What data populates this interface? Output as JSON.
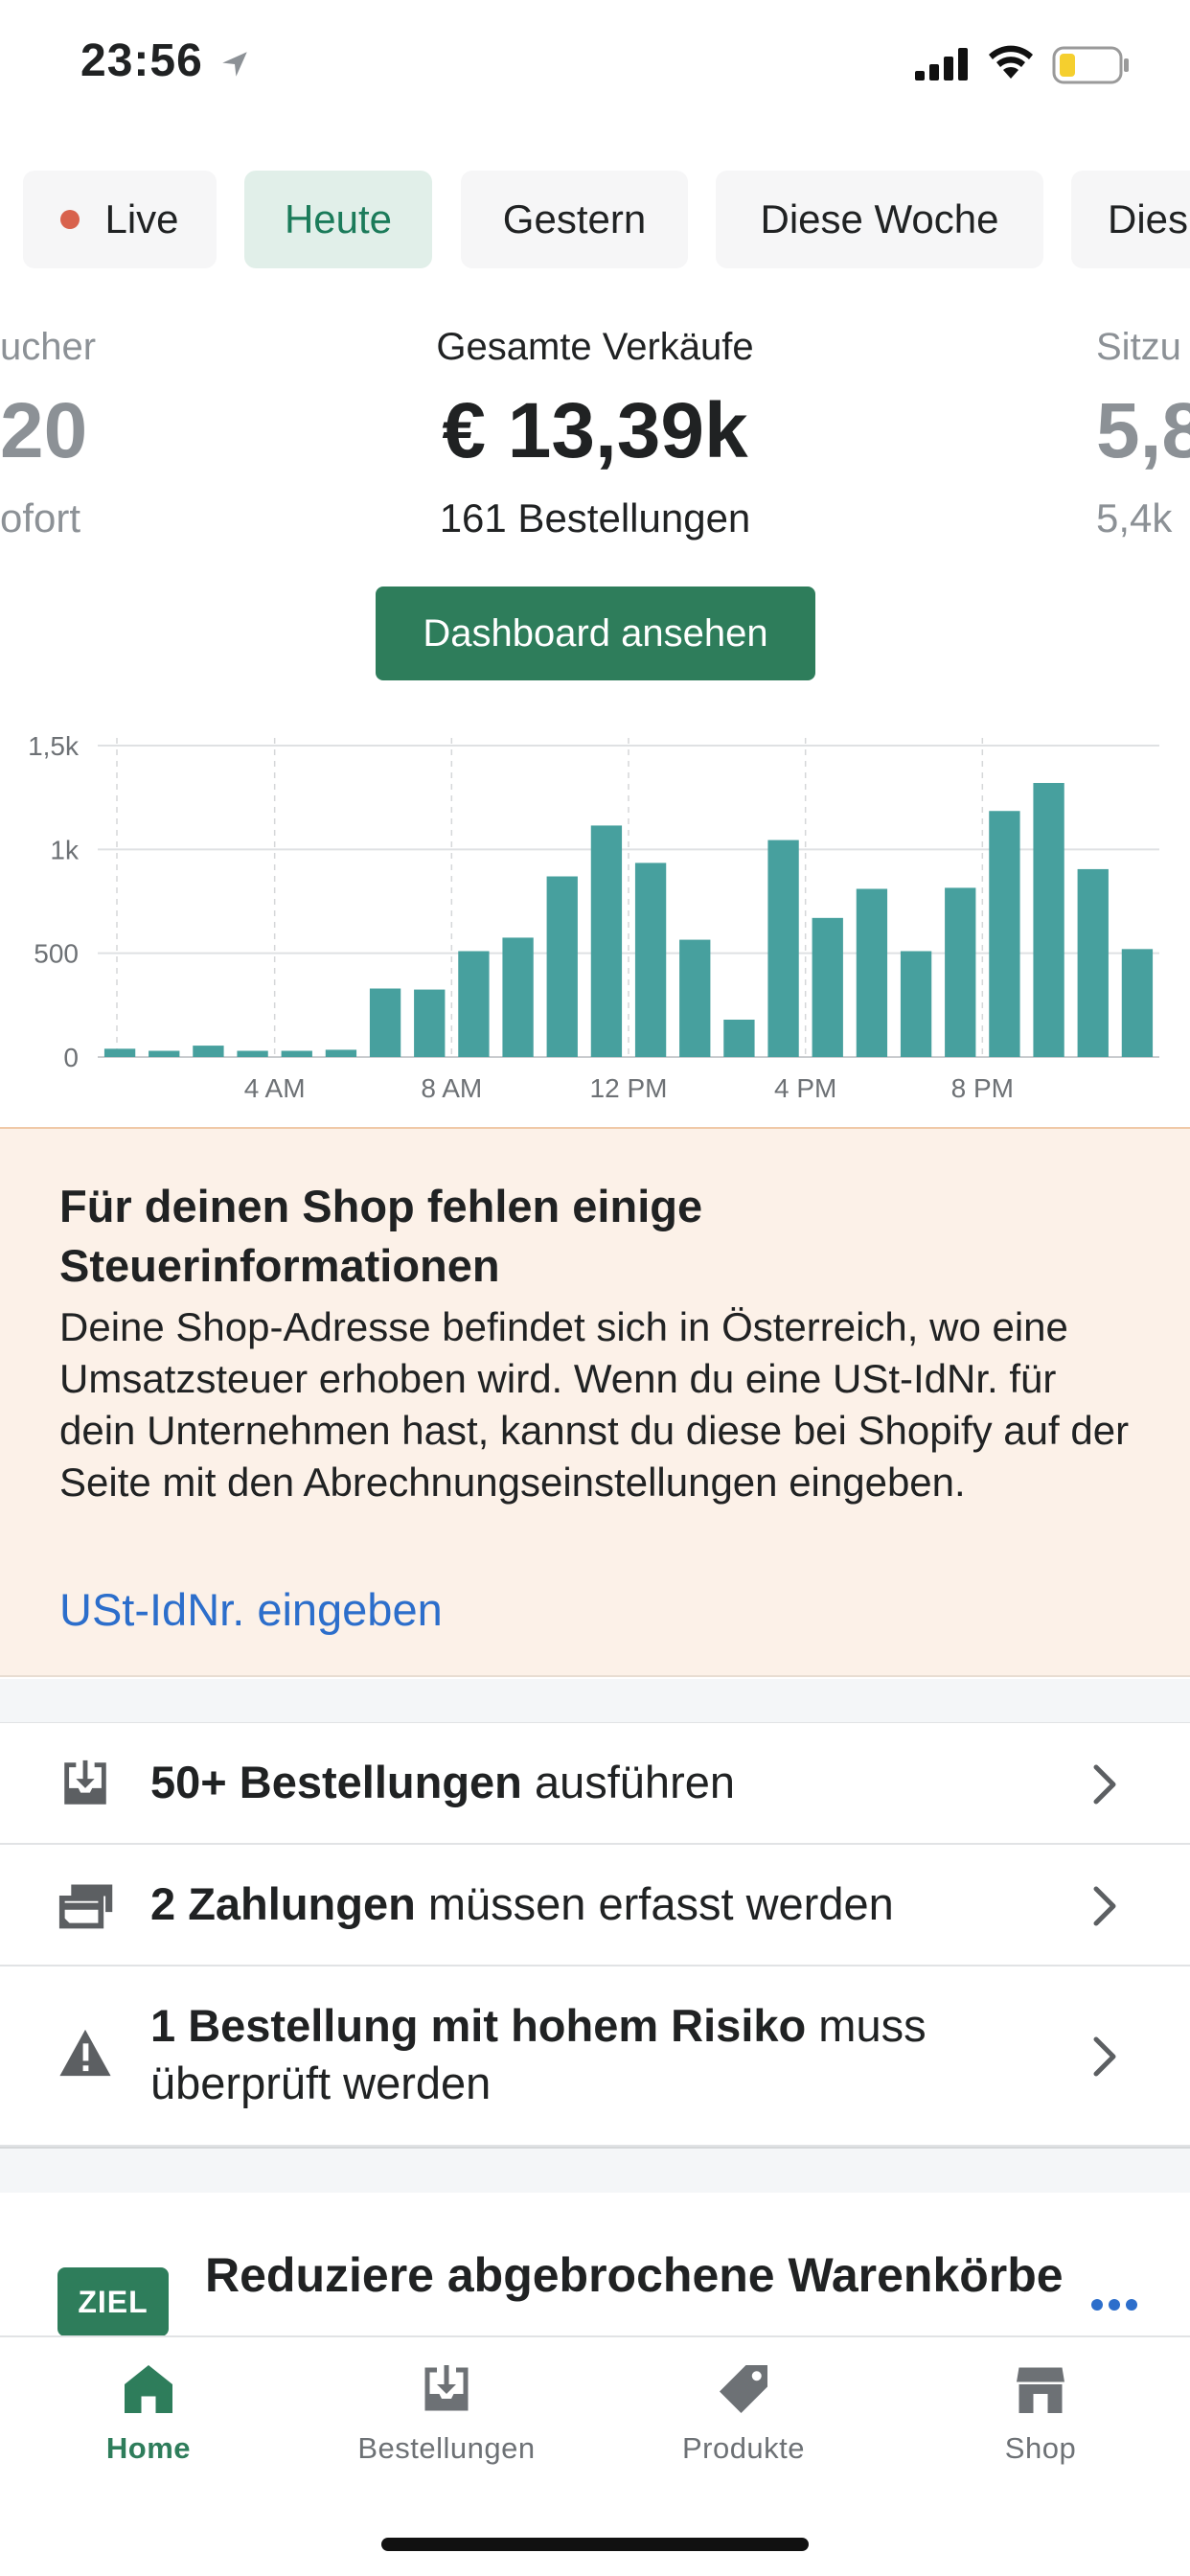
{
  "status_bar": {
    "time": "23:56"
  },
  "period_chips": [
    {
      "label": "Live",
      "live": true
    },
    {
      "label": "Heute",
      "active": true
    },
    {
      "label": "Gestern"
    },
    {
      "label": "Diese Woche"
    },
    {
      "label": "Dies"
    }
  ],
  "metrics": {
    "left": {
      "label": "ucher",
      "value": "20",
      "sub": "ofort"
    },
    "center": {
      "label": "Gesamte Verkäufe",
      "value": "€ 13,39k",
      "sub": "161 Bestellungen"
    },
    "right": {
      "label": "Sitzu",
      "value": "5,8",
      "sub": "5,4k"
    }
  },
  "dashboard_button": "Dashboard ansehen",
  "chart_data": {
    "type": "bar",
    "categories": [
      "0",
      "1",
      "2",
      "3",
      "4",
      "5",
      "6",
      "7",
      "8",
      "9",
      "10",
      "11",
      "12",
      "13",
      "14",
      "15",
      "16",
      "17",
      "18",
      "19",
      "20",
      "21",
      "22",
      "23"
    ],
    "values": [
      40,
      30,
      55,
      30,
      30,
      35,
      330,
      325,
      510,
      575,
      870,
      1115,
      935,
      565,
      180,
      1045,
      670,
      810,
      510,
      815,
      1185,
      1320,
      905,
      520
    ],
    "y_ticks": [
      "0",
      "500",
      "1k",
      "1,5k"
    ],
    "y_tick_values": [
      0,
      500,
      1000,
      1500
    ],
    "x_tick_labels": [
      "4 AM",
      "8 AM",
      "12 PM",
      "4 PM",
      "8 PM"
    ],
    "x_tick_hours": [
      4,
      8,
      12,
      16,
      20
    ],
    "ylim": [
      0,
      1500
    ],
    "bar_color": "#47a09e",
    "grid": true
  },
  "tax_banner": {
    "title": "Für deinen Shop fehlen einige Steuerinformationen",
    "text": "Deine Shop-Adresse befindet sich in Österreich, wo eine Umsatzsteuer erhoben wird. Wenn du eine USt-IdNr. für dein Unternehmen hast, kannst du diese bei Shopify auf der Seite mit den Abrechnungseinstellungen eingeben.",
    "link": "USt-IdNr. eingeben"
  },
  "tasks": [
    {
      "bold": "50+ Bestellungen",
      "rest": " ausführen",
      "icon": "inbox-download-icon"
    },
    {
      "bold": "2 Zahlungen",
      "rest": " müssen erfasst werden",
      "icon": "credit-card-icon"
    },
    {
      "bold": "1 Bestellung mit hohem Risiko",
      "rest": " muss überprüft werden",
      "icon": "warning-icon"
    }
  ],
  "goal": {
    "badge": "ZIEL",
    "title": "Reduziere abgebrochene Warenkörbe"
  },
  "tabbar": [
    {
      "label": "Home",
      "icon": "home-icon",
      "active": true
    },
    {
      "label": "Bestellungen",
      "icon": "orders-icon"
    },
    {
      "label": "Produkte",
      "icon": "tag-icon"
    },
    {
      "label": "Shop",
      "icon": "store-icon"
    }
  ],
  "colors": {
    "accent": "#2e7d5b",
    "link": "#2c6ecb",
    "banner_bg": "#fcf1e8"
  }
}
